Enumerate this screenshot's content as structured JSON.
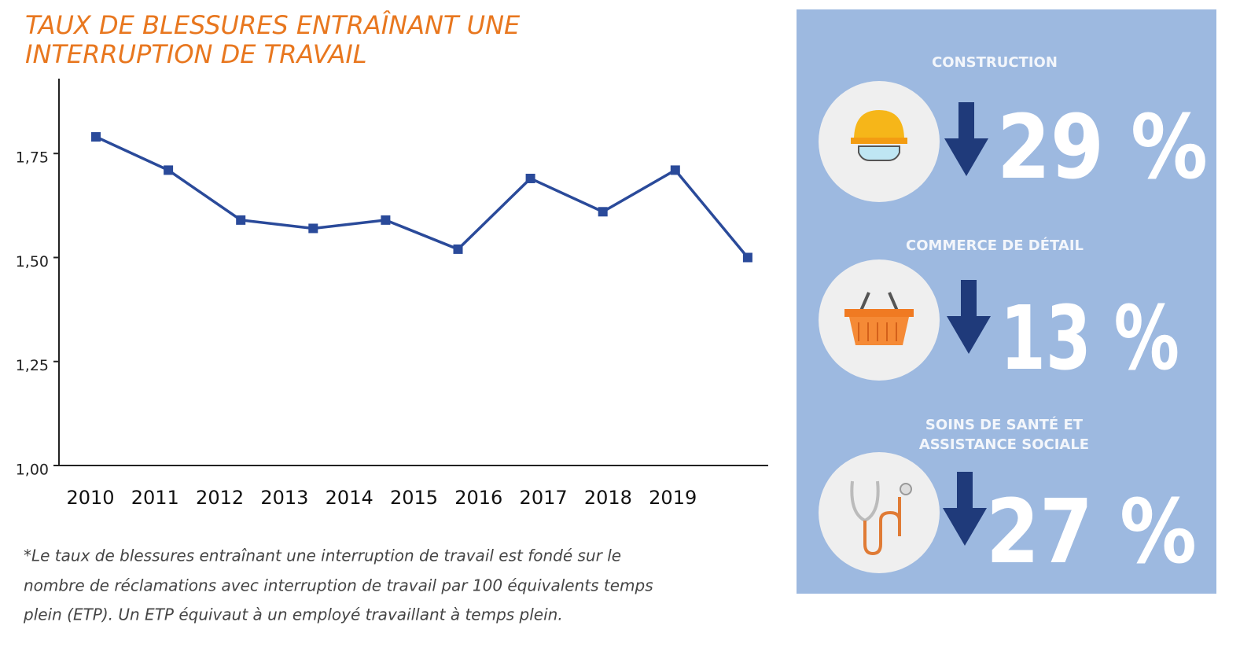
{
  "chart_data": {
    "type": "line",
    "title": [
      "TAUX DE BLESSURES ENTRAÎNANT UNE",
      "INTERRUPTION DE TRAVAIL"
    ],
    "categories": [
      "2010",
      "2011",
      "2012",
      "2013",
      "2014",
      "2015",
      "2016",
      "2017",
      "2018",
      "2019"
    ],
    "series": [
      {
        "color": "#2a4a9a",
        "values": [
          1.79,
          1.71,
          1.59,
          1.57,
          1.59,
          1.52,
          1.69,
          1.61,
          1.71,
          1.5
        ]
      }
    ],
    "ylim": [
      1.0,
      1.93
    ],
    "yticks": [
      {
        "value": 1.0,
        "label": "1,00"
      },
      {
        "value": 1.25,
        "label": "1,25"
      },
      {
        "value": 1.5,
        "label": "1,50"
      },
      {
        "value": 1.75,
        "label": "1,75"
      }
    ],
    "grid": false
  },
  "footnote": [
    "*Le taux de blessures entraînant une interruption de travail est fondé sur le",
    "nombre de réclamations avec interruption de travail par 100 équivalents temps",
    "plein (ETP). Un ETP équivaut à un employé travaillant à temps plein."
  ],
  "panel": [
    {
      "heading": [
        "CONSTRUCTION"
      ],
      "percent": "29 %"
    },
    {
      "heading": [
        "COMMERCE DE DÉTAIL"
      ],
      "percent": "13 %"
    },
    {
      "heading": [
        "SOINS DE SANTÉ ET",
        "ASSISTANCE SOCIALE"
      ],
      "percent": "27 %"
    }
  ]
}
